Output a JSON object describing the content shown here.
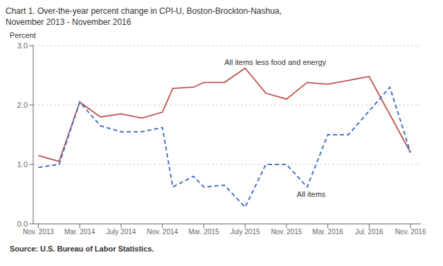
{
  "chart_data": {
    "type": "line",
    "title": "Chart 1.  Over-the-year percent change in CPI-U, Boston-Brockton-Nashua,",
    "subtitle": "November 2013 - November 2016",
    "y_label": "Percent",
    "source": "Source: U.S. Bureau of Labor Statistics.",
    "xlim": [
      -0.5,
      37
    ],
    "xticks": [
      {
        "value": 0,
        "label": "Nov. 2013"
      },
      {
        "value": 4,
        "label": "Mar. 2014"
      },
      {
        "value": 8,
        "label": "July 2014"
      },
      {
        "value": 12,
        "label": "Nov. 2014"
      },
      {
        "value": 16,
        "label": "Mar. 2015"
      },
      {
        "value": 20,
        "label": "July 2015"
      },
      {
        "value": 24,
        "label": "Nov. 2015"
      },
      {
        "value": 28,
        "label": "Mar. 2016"
      },
      {
        "value": 32,
        "label": "Jul. 2016"
      },
      {
        "value": 36,
        "label": "Nov. 2016"
      }
    ],
    "ylim": [
      0.0,
      3.0
    ],
    "yticks": [
      {
        "value": 0.0,
        "label": "0.0"
      },
      {
        "value": 1.0,
        "label": "1.0"
      },
      {
        "value": 2.0,
        "label": "2.0"
      },
      {
        "value": 3.0,
        "label": "3.0"
      }
    ],
    "grid": true,
    "series": [
      {
        "name": "All items less food and energy",
        "color": "#c0504d",
        "line_style": "solid",
        "x": [
          0,
          2,
          4,
          6,
          8,
          10,
          12,
          13,
          15,
          16,
          18,
          20,
          22,
          24,
          26,
          28,
          32,
          36
        ],
        "values": [
          1.15,
          1.05,
          2.05,
          1.8,
          1.85,
          1.78,
          1.88,
          2.28,
          2.3,
          2.38,
          2.38,
          2.62,
          2.2,
          2.1,
          2.38,
          2.35,
          2.48,
          1.2
        ]
      },
      {
        "name": "All items",
        "color": "#4472c4",
        "line_style": "dashed",
        "x": [
          0,
          2,
          4,
          6,
          8,
          10,
          12,
          13,
          15,
          16,
          18,
          20,
          22,
          24,
          26,
          28,
          30,
          34,
          36
        ],
        "values": [
          0.95,
          1.0,
          2.05,
          1.65,
          1.55,
          1.55,
          1.62,
          0.62,
          0.8,
          0.62,
          0.65,
          0.28,
          1.0,
          1.0,
          0.62,
          1.5,
          1.5,
          2.3,
          1.2
        ]
      }
    ],
    "annotations": [
      {
        "text": "All items less food and energy",
        "x": 18,
        "y": 2.72
      },
      {
        "text": "All items",
        "x": 25,
        "y": 0.5
      }
    ]
  }
}
